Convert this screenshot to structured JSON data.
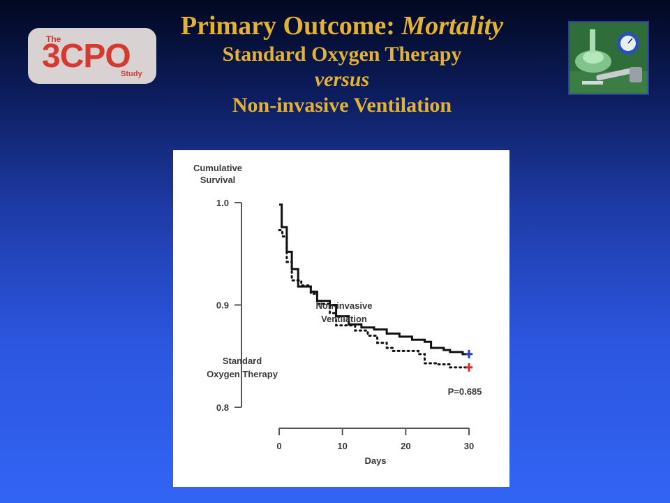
{
  "logo": {
    "prefix": "The",
    "name": "3CPO",
    "suffix": "Study"
  },
  "title": {
    "line1_main": "Primary Outcome: ",
    "line1_italic": "Mortality",
    "line2": "Standard Oxygen Therapy",
    "line3": "versus",
    "line4": "Non-invasive Ventilation"
  },
  "photo": {
    "icon": "oxygen-mask-and-regulator-photo"
  },
  "colors": {
    "title": "#e3b233",
    "niv_marker": "#1f3fd8",
    "sot_marker": "#dc2b2b"
  },
  "chart_data": {
    "type": "line",
    "ylabel": [
      "Cumulative",
      "Survival"
    ],
    "xlabel": "Days",
    "ylim": [
      0.8,
      1.0
    ],
    "xlim": [
      0,
      30
    ],
    "yticks": [
      0.8,
      0.9,
      1.0
    ],
    "ytick_labels": [
      "0.8",
      "0.9",
      "1.0"
    ],
    "xticks": [
      0,
      10,
      20,
      30
    ],
    "xtick_labels": [
      "0",
      "10",
      "20",
      "30"
    ],
    "grid": false,
    "annotation": "P=0.685",
    "series": [
      {
        "name": "Non-invasive Ventilation",
        "label_lines": [
          "Non-invasive",
          "Ventilation"
        ],
        "style": "solid",
        "x": [
          0,
          0.4,
          1.2,
          2.0,
          3.0,
          5.0,
          6.0,
          8.0,
          9.0,
          11.0,
          13.0,
          15.0,
          17.0,
          19.0,
          21.0,
          23.0,
          24.0,
          26.0,
          27.0,
          29.0,
          30.0
        ],
        "y": [
          0.998,
          0.976,
          0.952,
          0.935,
          0.918,
          0.913,
          0.904,
          0.9,
          0.889,
          0.881,
          0.878,
          0.876,
          0.872,
          0.869,
          0.866,
          0.864,
          0.858,
          0.856,
          0.854,
          0.852,
          0.852
        ]
      },
      {
        "name": "Standard Oxygen Therapy",
        "label_lines": [
          "Standard",
          "Oxygen Therapy"
        ],
        "style": "dotted",
        "x": [
          0,
          0.5,
          1.2,
          2.0,
          3.5,
          5.0,
          6.0,
          8.0,
          9.0,
          12.0,
          14.0,
          15.5,
          17.0,
          18.0,
          22.0,
          23.0,
          25.0,
          27.0,
          30.0
        ],
        "y": [
          0.973,
          0.967,
          0.942,
          0.924,
          0.919,
          0.911,
          0.901,
          0.892,
          0.88,
          0.875,
          0.87,
          0.863,
          0.858,
          0.855,
          0.852,
          0.843,
          0.842,
          0.839,
          0.839
        ]
      }
    ]
  }
}
